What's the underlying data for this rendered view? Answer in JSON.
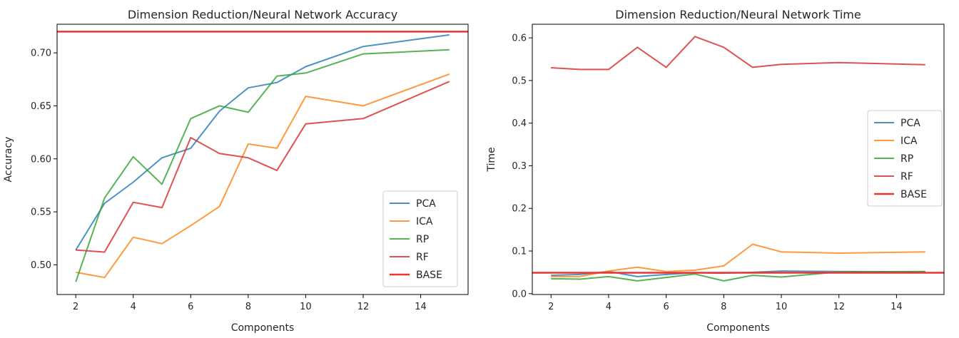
{
  "chart_data": [
    {
      "type": "line",
      "title": "Dimension Reduction/Neural Network Accuracy",
      "xlabel": "Components",
      "ylabel": "Accuracy",
      "xlim": [
        1.35,
        15.65
      ],
      "ylim": [
        0.472,
        0.727
      ],
      "xticks": [
        2,
        4,
        6,
        8,
        10,
        12,
        14
      ],
      "yticks": [
        0.5,
        0.55,
        0.6,
        0.65,
        0.7
      ],
      "ytick_labels": [
        "0.50",
        "0.55",
        "0.60",
        "0.65",
        "0.70"
      ],
      "grid": false,
      "legend": "lower-right",
      "x": [
        2,
        3,
        4,
        5,
        6,
        7,
        8,
        9,
        10,
        12,
        15
      ],
      "series": [
        {
          "name": "PCA",
          "color": "#1f77b4",
          "values": [
            0.514,
            0.558,
            0.578,
            0.601,
            0.61,
            0.645,
            0.667,
            0.672,
            0.687,
            0.706,
            0.717
          ]
        },
        {
          "name": "ICA",
          "color": "#ff7f0e",
          "values": [
            0.493,
            0.488,
            0.526,
            0.52,
            0.537,
            0.555,
            0.614,
            0.61,
            0.659,
            0.65,
            0.68
          ]
        },
        {
          "name": "RP",
          "color": "#2ca02c",
          "values": [
            0.484,
            0.563,
            0.602,
            0.576,
            0.638,
            0.65,
            0.644,
            0.678,
            0.681,
            0.699,
            0.703
          ]
        },
        {
          "name": "RF",
          "color": "#d62728",
          "values": [
            0.514,
            0.512,
            0.559,
            0.554,
            0.62,
            0.605,
            0.601,
            0.589,
            0.633,
            0.638,
            0.673
          ]
        }
      ],
      "baseline": {
        "name": "BASE",
        "color": "#ee3333",
        "value": 0.72
      }
    },
    {
      "type": "line",
      "title": "Dimension Reduction/Neural Network Time",
      "xlabel": "Components",
      "ylabel": "Time",
      "xlim": [
        1.35,
        15.65
      ],
      "ylim": [
        -0.002,
        0.632
      ],
      "xticks": [
        2,
        4,
        6,
        8,
        10,
        12,
        14
      ],
      "yticks": [
        0.0,
        0.1,
        0.2,
        0.3,
        0.4,
        0.5,
        0.6
      ],
      "ytick_labels": [
        "0.0",
        "0.1",
        "0.2",
        "0.3",
        "0.4",
        "0.5",
        "0.6"
      ],
      "grid": false,
      "legend": "center-right",
      "x": [
        2,
        3,
        4,
        5,
        6,
        7,
        8,
        9,
        10,
        12,
        15
      ],
      "series": [
        {
          "name": "PCA",
          "color": "#1f77b4",
          "values": [
            0.043,
            0.045,
            0.052,
            0.04,
            0.045,
            0.049,
            0.048,
            0.05,
            0.053,
            0.052,
            0.051
          ]
        },
        {
          "name": "ICA",
          "color": "#ff7f0e",
          "values": [
            0.04,
            0.04,
            0.053,
            0.062,
            0.052,
            0.055,
            0.065,
            0.116,
            0.098,
            0.095,
            0.098
          ]
        },
        {
          "name": "RP",
          "color": "#2ca02c",
          "values": [
            0.035,
            0.034,
            0.04,
            0.03,
            0.038,
            0.046,
            0.03,
            0.043,
            0.039,
            0.051,
            0.052
          ]
        },
        {
          "name": "RF",
          "color": "#d62728",
          "values": [
            0.53,
            0.526,
            0.526,
            0.578,
            0.531,
            0.603,
            0.578,
            0.531,
            0.538,
            0.542,
            0.537
          ]
        }
      ],
      "baseline": {
        "name": "BASE",
        "color": "#ee3333",
        "value": 0.049
      }
    }
  ]
}
